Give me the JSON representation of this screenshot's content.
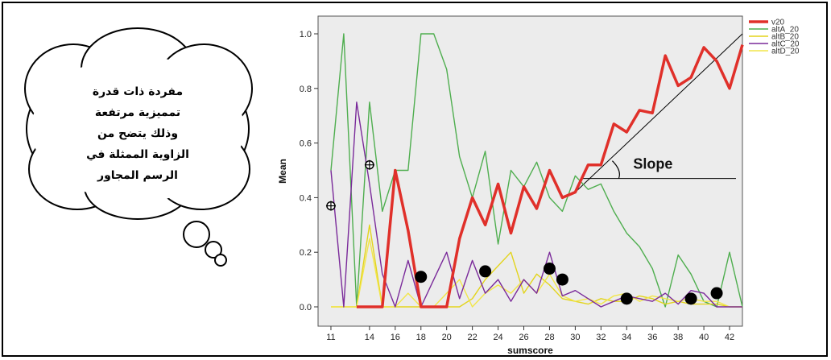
{
  "chart_data": {
    "type": "line",
    "xlabel": "sumscore",
    "ylabel": "Mean",
    "ylim": [
      0,
      1.0
    ],
    "xlim": [
      10,
      43
    ],
    "yticks": [
      "0.0",
      "0.2",
      "0.4",
      "0.6",
      "0.8",
      "1.0"
    ],
    "xticks": [
      "11",
      "14",
      "16",
      "18",
      "20",
      "22",
      "24",
      "26",
      "28",
      "30",
      "32",
      "34",
      "36",
      "38",
      "40",
      "42"
    ],
    "grid": false,
    "legend_position": "top-right",
    "series": [
      {
        "name": "v20",
        "color": "#e0302a",
        "x": [
          13,
          14,
          15,
          16,
          17,
          18,
          19,
          20,
          21,
          22,
          23,
          24,
          25,
          26,
          27,
          28,
          29,
          30,
          31,
          32,
          33,
          34,
          35,
          36,
          37,
          38,
          39,
          40,
          41,
          42,
          43
        ],
        "values": [
          0.0,
          0.0,
          0.0,
          0.5,
          0.28,
          0.0,
          0.0,
          0.0,
          0.25,
          0.4,
          0.3,
          0.45,
          0.27,
          0.44,
          0.36,
          0.5,
          0.4,
          0.42,
          0.52,
          0.52,
          0.67,
          0.64,
          0.72,
          0.71,
          0.92,
          0.81,
          0.84,
          0.95,
          0.9,
          0.8,
          0.96
        ]
      },
      {
        "name": "altA_20",
        "color": "#4fae4f",
        "x": [
          11,
          12,
          13,
          14,
          15,
          16,
          17,
          18,
          19,
          20,
          21,
          22,
          23,
          24,
          25,
          26,
          27,
          28,
          29,
          30,
          31,
          32,
          33,
          34,
          35,
          36,
          37,
          38,
          39,
          40,
          41,
          42,
          43
        ],
        "values": [
          0.5,
          1.0,
          0.0,
          0.75,
          0.35,
          0.5,
          0.5,
          1.0,
          1.0,
          0.87,
          0.55,
          0.4,
          0.57,
          0.23,
          0.5,
          0.44,
          0.53,
          0.4,
          0.35,
          0.48,
          0.43,
          0.45,
          0.35,
          0.27,
          0.22,
          0.14,
          0.0,
          0.19,
          0.12,
          0.02,
          0.0,
          0.2,
          0.0
        ]
      },
      {
        "name": "altB_20",
        "color": "#e3d41c",
        "x": [
          11,
          12,
          13,
          14,
          15,
          16,
          17,
          18,
          19,
          20,
          21,
          22,
          23,
          24,
          25,
          26,
          27,
          28,
          29,
          30,
          31,
          32,
          33,
          34,
          35,
          36,
          37,
          38,
          39,
          40,
          41,
          42,
          43
        ],
        "values": [
          0.0,
          0.0,
          0.0,
          0.3,
          0.0,
          0.0,
          0.0,
          0.0,
          0.0,
          0.0,
          0.0,
          0.03,
          0.1,
          0.15,
          0.2,
          0.05,
          0.12,
          0.08,
          0.03,
          0.02,
          0.01,
          0.03,
          0.02,
          0.02,
          0.04,
          0.03,
          0.01,
          0.02,
          0.01,
          0.01,
          0.01,
          0.0,
          0.0
        ]
      },
      {
        "name": "altC_20",
        "color": "#7a2a9a",
        "x": [
          11,
          12,
          13,
          14,
          15,
          16,
          17,
          18,
          19,
          20,
          21,
          22,
          23,
          24,
          25,
          26,
          27,
          28,
          29,
          30,
          31,
          32,
          33,
          34,
          35,
          36,
          37,
          38,
          39,
          40,
          41,
          42,
          43
        ],
        "values": [
          0.5,
          0.0,
          0.75,
          0.45,
          0.12,
          0.0,
          0.17,
          0.0,
          0.1,
          0.2,
          0.03,
          0.17,
          0.05,
          0.1,
          0.02,
          0.1,
          0.05,
          0.2,
          0.04,
          0.06,
          0.03,
          0.0,
          0.02,
          0.04,
          0.03,
          0.02,
          0.05,
          0.01,
          0.06,
          0.05,
          0.0,
          0.0,
          0.0
        ]
      },
      {
        "name": "altD_20",
        "color": "#f2e64a",
        "x": [
          11,
          12,
          13,
          14,
          15,
          16,
          17,
          18,
          19,
          20,
          21,
          22,
          23,
          24,
          25,
          26,
          27,
          28,
          29,
          30,
          31,
          32,
          33,
          34,
          35,
          36,
          37,
          38,
          39,
          40,
          41,
          42,
          43
        ],
        "values": [
          0.0,
          0.0,
          0.0,
          0.25,
          0.0,
          0.0,
          0.05,
          0.0,
          0.0,
          0.05,
          0.1,
          0.0,
          0.05,
          0.08,
          0.05,
          0.1,
          0.05,
          0.12,
          0.04,
          0.02,
          0.03,
          0.01,
          0.04,
          0.05,
          0.02,
          0.04,
          0.03,
          0.02,
          0.03,
          0.02,
          0.02,
          0.0,
          0.0
        ]
      }
    ],
    "reference_line": {
      "from": [
        30,
        0.42
      ],
      "to": [
        43,
        1.0
      ],
      "color": "#000000"
    },
    "slope_annotation": {
      "label": "Slope",
      "baseline_from": [
        30,
        0.47
      ],
      "baseline_to": [
        43,
        0.47
      ]
    },
    "markers": [
      {
        "x": 11,
        "y": 0.37
      },
      {
        "x": 14,
        "y": 0.52
      },
      {
        "x": 18,
        "y": 0.11
      },
      {
        "x": 23,
        "y": 0.13
      },
      {
        "x": 28,
        "y": 0.14
      },
      {
        "x": 29,
        "y": 0.1
      },
      {
        "x": 34,
        "y": 0.03
      },
      {
        "x": 39,
        "y": 0.03
      },
      {
        "x": 41,
        "y": 0.05
      }
    ],
    "annotation_bubble": {
      "lines": [
        "مفردة ذات قدرة",
        "تمميزية مرتفعة",
        "وذلك يتضح من",
        "الزاوية الممثلة في",
        "الرسم المجاور"
      ]
    }
  }
}
